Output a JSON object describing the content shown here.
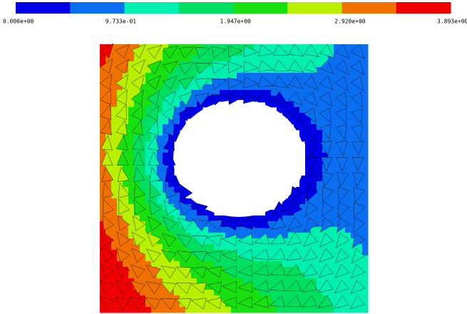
{
  "colorbar": {
    "colors": [
      "#0000e6",
      "#0a6ef0",
      "#00f0b0",
      "#00e060",
      "#18e010",
      "#b8f000",
      "#f07000",
      "#f00000"
    ],
    "labels": [
      "0.000e+00",
      "9.733e-01",
      "1.947e+00",
      "2.920e+00",
      "3.893e+00"
    ]
  }
}
